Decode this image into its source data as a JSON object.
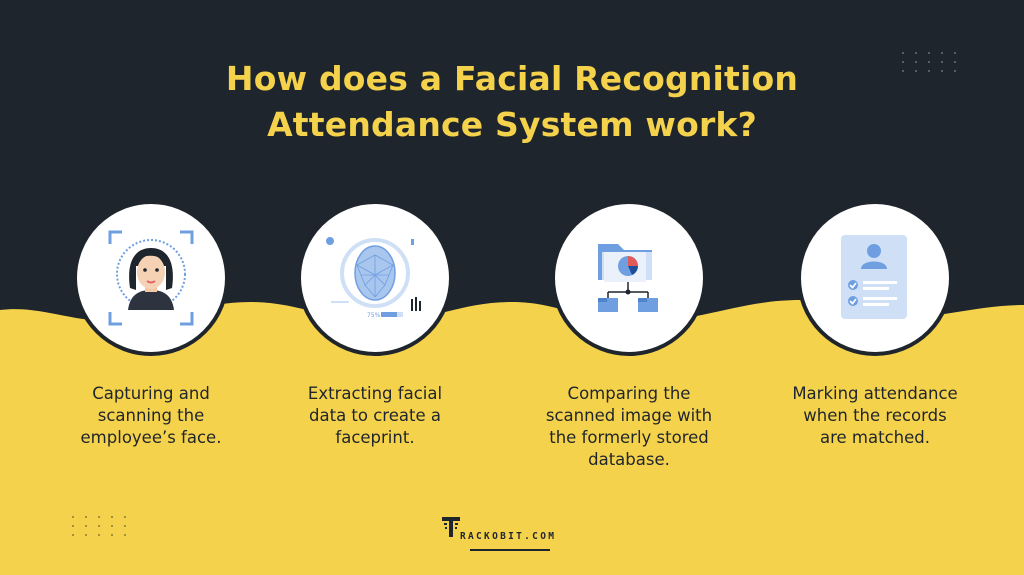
{
  "header": {
    "title_line1": "How does a Facial Recognition",
    "title_line2": "Attendance System work?"
  },
  "colors": {
    "dark": "#1f252c",
    "accent_yellow": "#f5d24b",
    "circle_fill": "#ffffff",
    "icon_blue": "#6f9fe0",
    "icon_light_blue": "#cfe0f6"
  },
  "steps": [
    {
      "icon": "face-scan-icon",
      "caption_lines": [
        "Capturing and",
        "scanning the",
        "employee’s face."
      ]
    },
    {
      "icon": "faceprint-mesh-icon",
      "caption_lines": [
        "Extracting facial",
        "data to create a",
        "faceprint."
      ]
    },
    {
      "icon": "database-folder-icon",
      "caption_lines": [
        "Comparing the",
        "scanned image with",
        "the formerly stored",
        "database."
      ]
    },
    {
      "icon": "attendance-checklist-icon",
      "caption_lines": [
        "Marking attendance",
        "when the records",
        "are matched."
      ]
    }
  ],
  "icon_details": {
    "faceprint_percent": "75%"
  },
  "footer": {
    "brand": "RACKOBIT.COM"
  }
}
